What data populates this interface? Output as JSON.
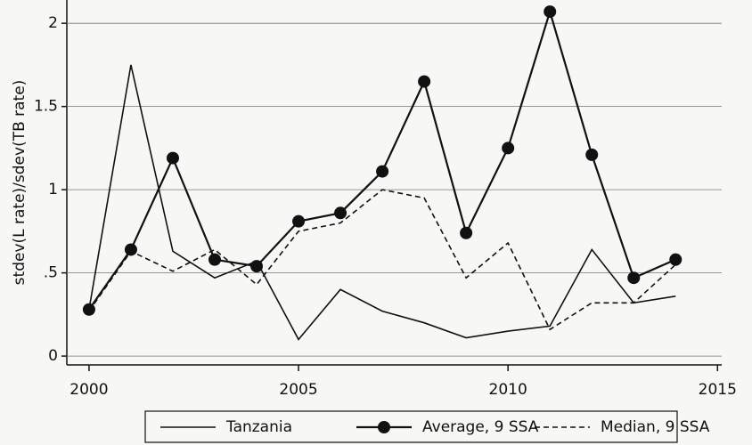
{
  "chart_data": {
    "type": "line",
    "y_label": "stdev(L rate)/sdev(TB rate)",
    "x": [
      2000,
      2001,
      2002,
      2003,
      2004,
      2005,
      2006,
      2007,
      2008,
      2009,
      2010,
      2011,
      2012,
      2013,
      2014
    ],
    "xlim": [
      1999.47,
      2015.1
    ],
    "xticks": [
      2000,
      2005,
      2010,
      2015
    ],
    "ylim": [
      -0.053,
      2.14
    ],
    "yticks": [
      0,
      {
        "value": 0.5,
        "label": ".5"
      },
      1,
      1.5,
      2
    ],
    "grid": true,
    "legend": "bottom",
    "series": [
      {
        "name": "Tanzania",
        "color": "#111111",
        "dash": false,
        "marker": false,
        "values": [
          0.28,
          1.75,
          0.63,
          0.47,
          0.57,
          0.1,
          0.4,
          0.27,
          0.2,
          0.11,
          0.15,
          0.18,
          0.64,
          0.32,
          0.36
        ]
      },
      {
        "name": "Average, 9 SSA",
        "color": "#111111",
        "dash": false,
        "marker": true,
        "values": [
          0.28,
          0.64,
          1.19,
          0.58,
          0.54,
          0.81,
          0.86,
          1.11,
          1.65,
          0.74,
          1.25,
          2.07,
          1.21,
          0.47,
          0.58
        ]
      },
      {
        "name": "Median, 9 SSA",
        "color": "#111111",
        "dash": true,
        "marker": false,
        "values": [
          0.27,
          0.63,
          0.51,
          0.64,
          0.43,
          0.75,
          0.8,
          1.0,
          0.95,
          0.47,
          0.68,
          0.16,
          0.32,
          0.32,
          0.55
        ]
      }
    ]
  }
}
